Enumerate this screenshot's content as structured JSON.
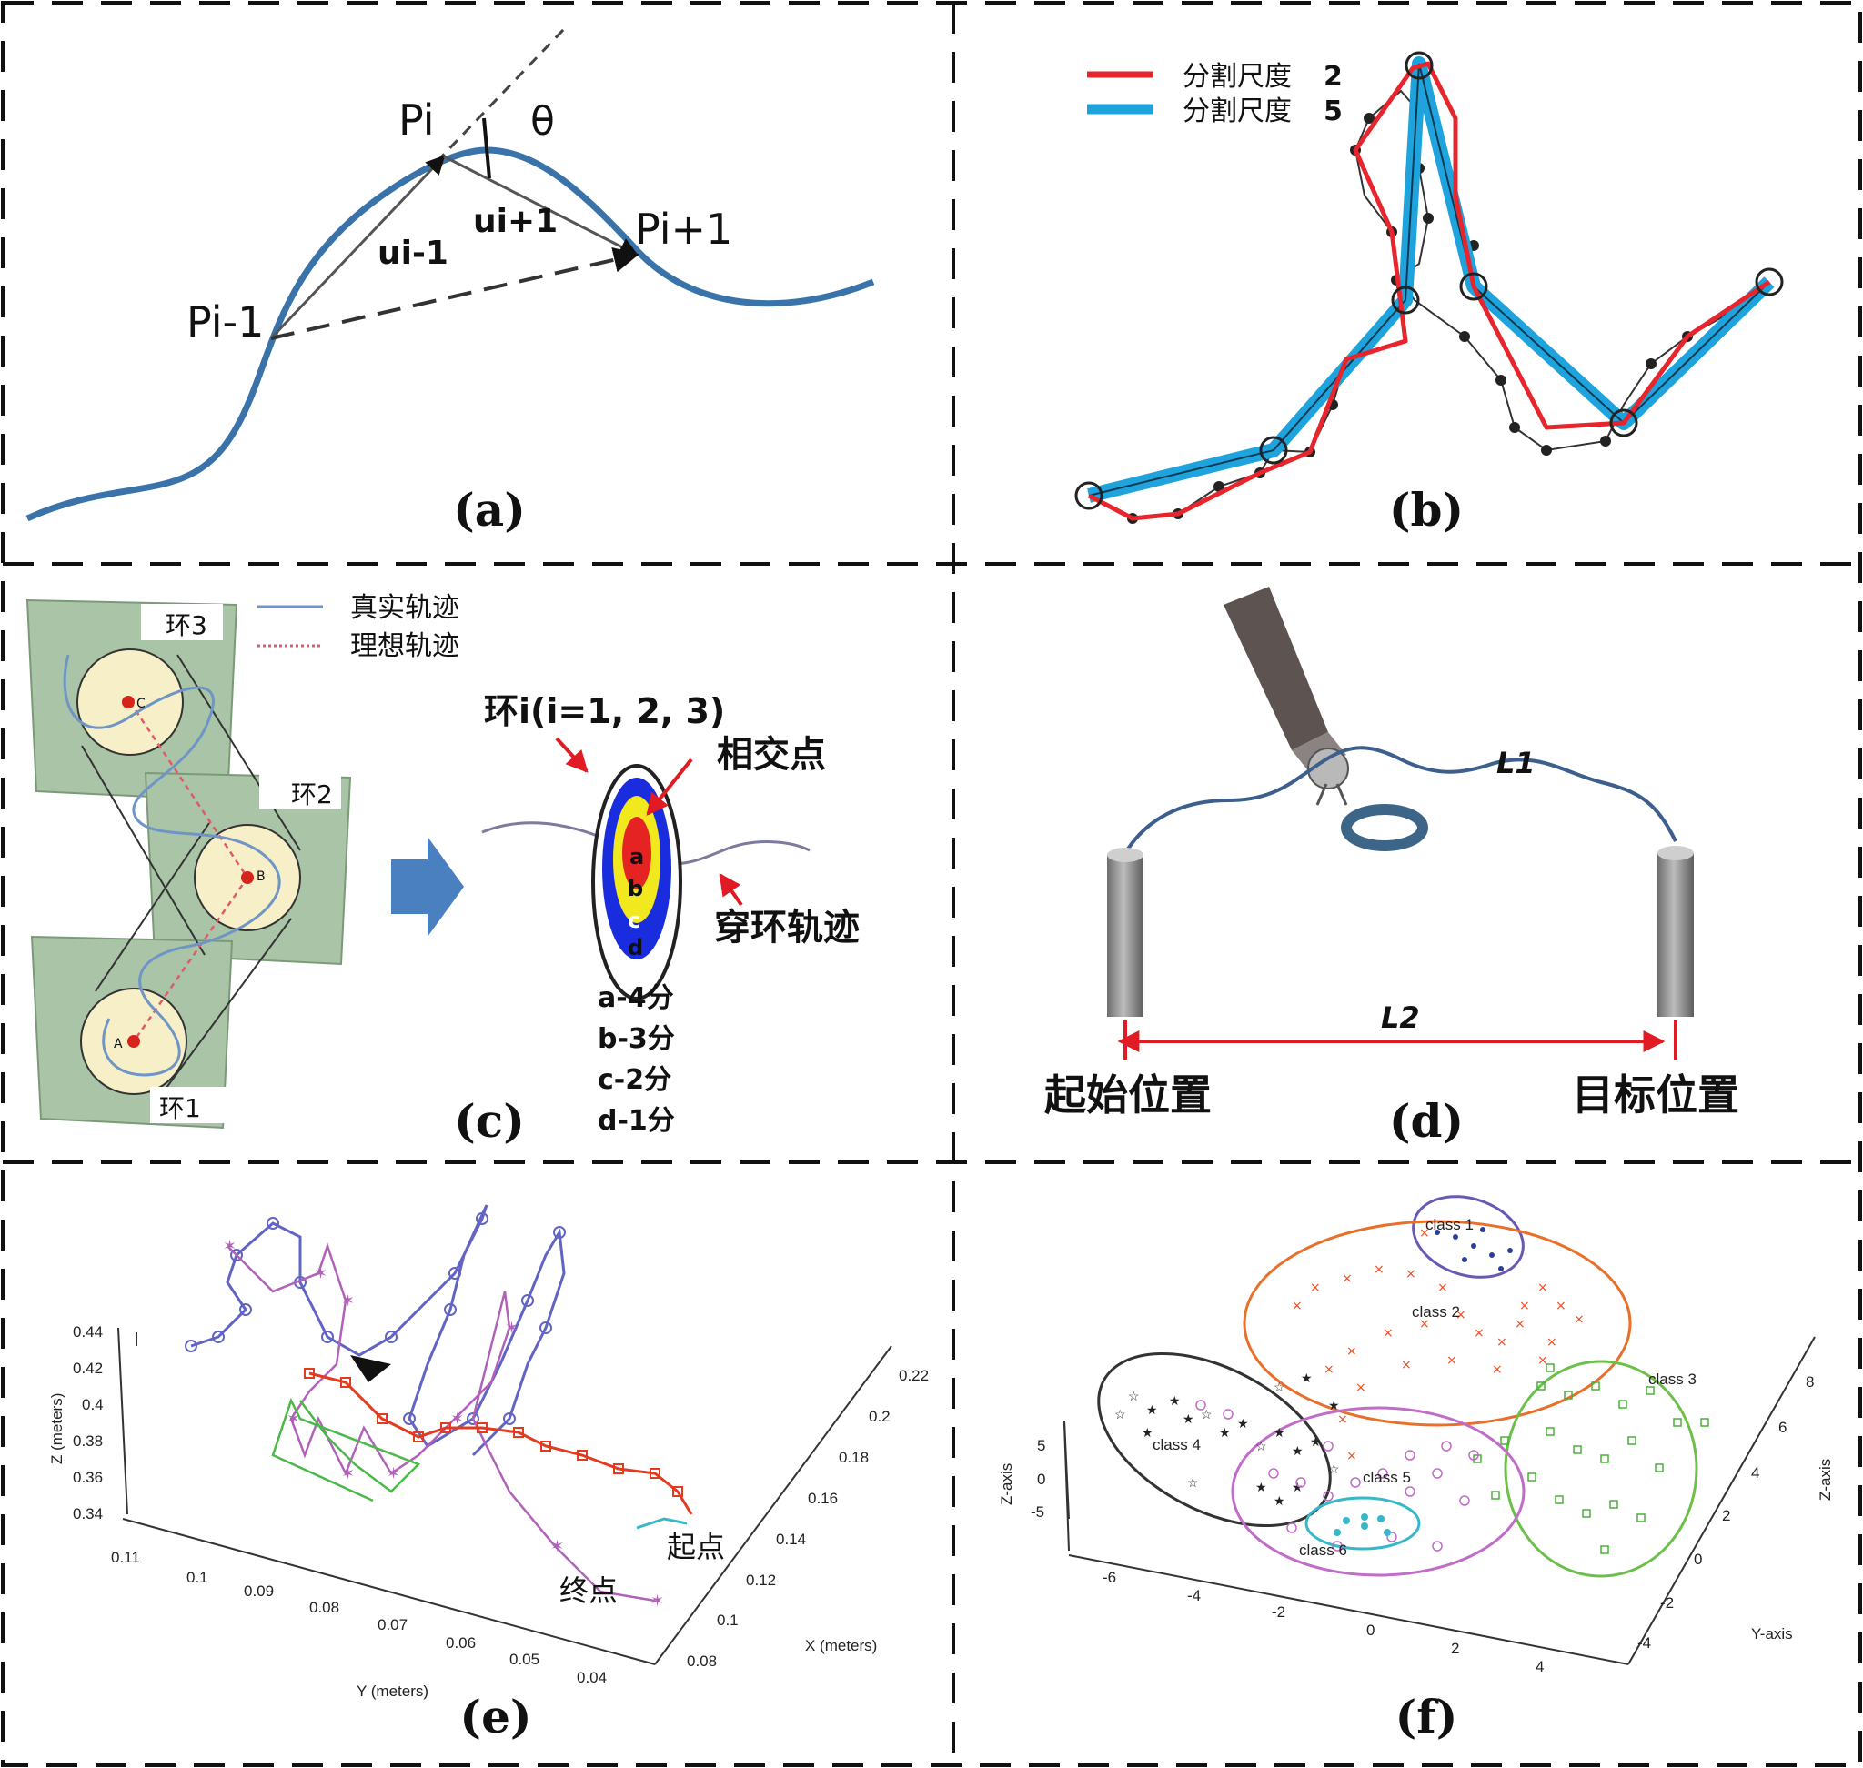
{
  "panels": {
    "a": {
      "caption": "(a)",
      "labels": {
        "p_i": "Pi",
        "p_i_minus_1": "Pi-1",
        "p_i_plus_1": "Pi+1",
        "u_i_minus_1": "ui-1",
        "u_i_plus_1": "ui+1",
        "theta": "θ"
      }
    },
    "b": {
      "caption": "(b)",
      "legend": [
        {
          "label": "分割尺度",
          "value": "2",
          "color": "#e8242c"
        },
        {
          "label": "分割尺度",
          "value": "5",
          "color": "#1fa3dc"
        }
      ]
    },
    "c": {
      "caption": "(c)",
      "legend": [
        {
          "label": "真实轨迹",
          "color": "#6f95c6"
        },
        {
          "label": "理想轨迹",
          "color": "#e05a6a"
        }
      ],
      "rings": {
        "ring1": "环1",
        "ring2": "环2",
        "ring3": "环3"
      },
      "points": {
        "a": "A",
        "b": "B",
        "c": "C"
      },
      "target_title": "环i(i=1, 2, 3)",
      "intersection": "相交点",
      "trajectory": "穿环轨迹",
      "zones": [
        "a",
        "b",
        "c",
        "d"
      ],
      "scores": [
        "a-4分",
        "b-3分",
        "c-2分",
        "d-1分"
      ]
    },
    "d": {
      "caption": "(d)",
      "l1": "L1",
      "l2": "L2",
      "start": "起始位置",
      "goal": "目标位置"
    },
    "e": {
      "caption": "(e)",
      "z_axis_label": "Z (meters)",
      "y_axis_label": "Y (meters)",
      "x_axis_label": "X (meters)",
      "z_ticks": [
        "0.44",
        "0.42",
        "0.4",
        "0.38",
        "0.36",
        "0.34"
      ],
      "y_ticks": [
        "0.11",
        "0.1",
        "0.09",
        "0.08",
        "0.07",
        "0.06",
        "0.05",
        "0.04"
      ],
      "x_ticks": [
        "0.22",
        "0.2",
        "0.18",
        "0.16",
        "0.14",
        "0.12",
        "0.1",
        "0.08"
      ],
      "start": "起点",
      "end": "终点"
    },
    "f": {
      "caption": "(f)",
      "z_axis_label": "Z-axis",
      "y_axis_label": "Y-axis",
      "z_axis_label_right": "Z-axis",
      "z_ticks": [
        "5",
        "0",
        "-5"
      ],
      "x_ticks": [
        "-6",
        "-4",
        "-2",
        "0",
        "2",
        "4"
      ],
      "y_ticks": [
        "8",
        "6",
        "4",
        "2",
        "0",
        "-2",
        "-4"
      ],
      "classes": [
        "class 1",
        "class 2",
        "class 3",
        "class 4",
        "class 5",
        "class 6"
      ],
      "class_colors": [
        "#3a3a9a",
        "#e8502a",
        "#4caf3a",
        "#222222",
        "#b04cb8",
        "#37b8c9"
      ]
    }
  }
}
